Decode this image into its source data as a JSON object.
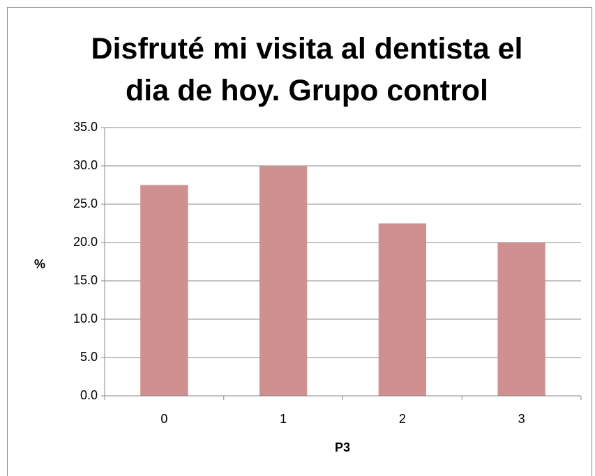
{
  "chart_data": {
    "type": "bar",
    "title": "Disfruté mi visita al dentista el dia de hoy. Grupo control",
    "x_label": "P3",
    "y_label": "%",
    "categories": [
      "0",
      "1",
      "2",
      "3"
    ],
    "values": [
      27.5,
      30.0,
      22.5,
      20.0
    ],
    "color": "#d09090",
    "ylim": [
      0,
      35
    ],
    "yticks": [
      {
        "value": 0,
        "label": "0.0"
      },
      {
        "value": 5,
        "label": "5.0"
      },
      {
        "value": 10,
        "label": "10.0"
      },
      {
        "value": 15,
        "label": "15.0"
      },
      {
        "value": 20,
        "label": "20.0"
      },
      {
        "value": 25,
        "label": "25.0"
      },
      {
        "value": 30,
        "label": "30.0"
      },
      {
        "value": 35,
        "label": "35.0"
      }
    ],
    "grid": true
  }
}
